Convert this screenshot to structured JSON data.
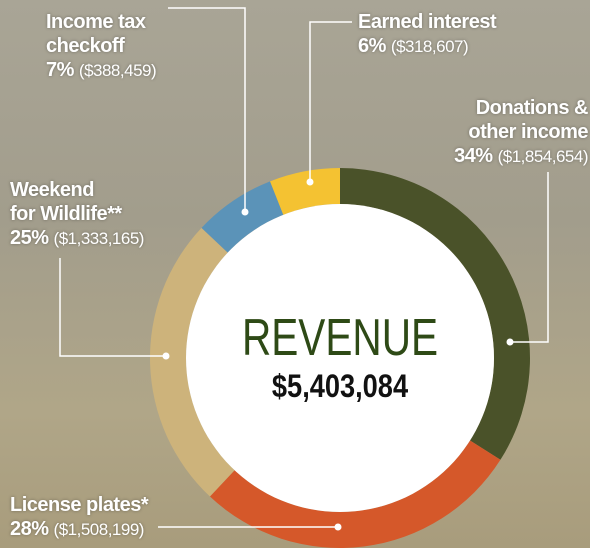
{
  "chart_data": {
    "type": "donut",
    "title": "REVENUE",
    "total": 5403084,
    "total_label": "$5,403,084",
    "label_lines": [
      [
        "Donations &",
        "other income"
      ],
      [
        "License plates*"
      ],
      [
        "Weekend",
        "for Wildlife**"
      ],
      [
        "Income tax",
        "checkoff"
      ],
      [
        "Earned interest"
      ]
    ],
    "values": [
      34,
      28,
      25,
      7,
      6
    ],
    "value_labels": [
      "34%",
      "28%",
      "25%",
      "7%",
      "6%"
    ],
    "amounts": [
      1854654,
      1508199,
      1333165,
      388459,
      318607
    ],
    "amount_labels": [
      "($1,854,654)",
      "($1,508,199)",
      "($1,333,165)",
      "($388,459)",
      "($318,607)"
    ],
    "colors": [
      "#4a5229",
      "#d5582a",
      "#cdb37b",
      "#5b93b8",
      "#f4c232"
    ]
  }
}
